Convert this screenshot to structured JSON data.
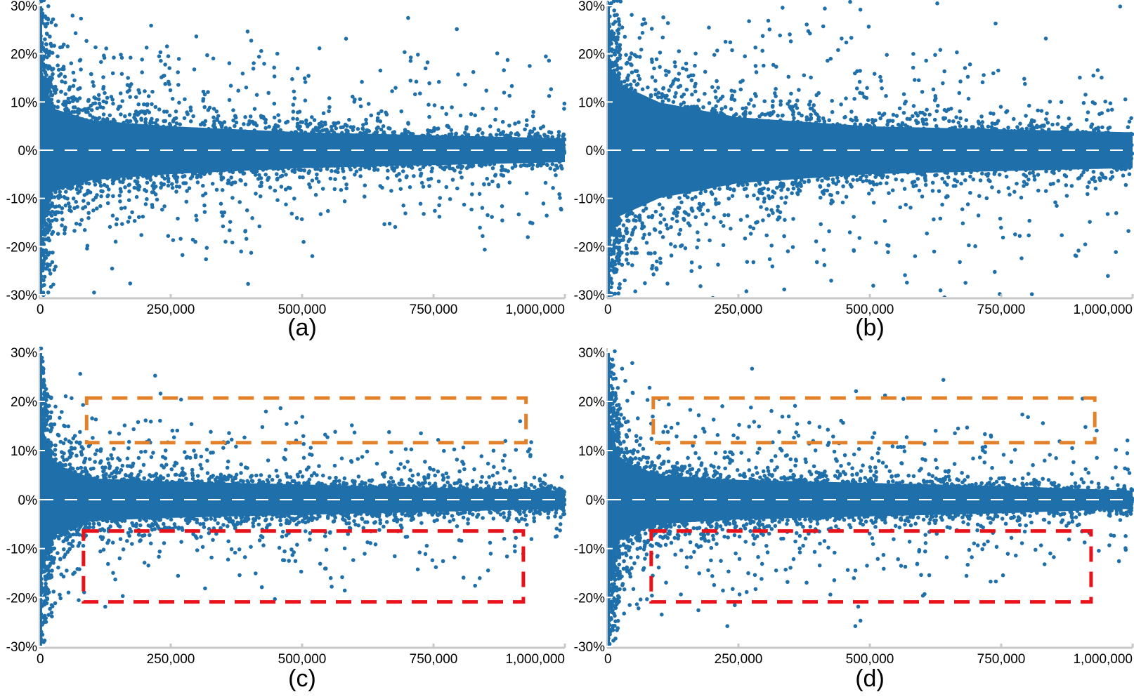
{
  "chart_data": [
    {
      "type": "scatter",
      "panel_label": "(a)",
      "xlabel": "",
      "ylabel": "",
      "xlim": [
        0,
        1000000
      ],
      "ylim": [
        -30,
        30
      ],
      "x_ticks": [
        "0",
        "250,000",
        "500,000",
        "750,000",
        "1,000,000"
      ],
      "x_tick_values": [
        0,
        250000,
        500000,
        750000,
        1000000
      ],
      "y_ticks": [
        "30%",
        "20%",
        "10%",
        "0%",
        "-10%",
        "-20%",
        "-30%"
      ],
      "y_tick_values": [
        30,
        20,
        10,
        0,
        -10,
        -20,
        -30
      ],
      "reference_line": {
        "y": 0,
        "style": "dashed",
        "color": "#ffffff"
      },
      "marker_color": "#1F6FAA",
      "point_count_estimate": 20000,
      "band_halfwidth_pct": [
        {
          "x": 0,
          "value": 30
        },
        {
          "x": 25000,
          "value": 14
        },
        {
          "x": 100000,
          "value": 10
        },
        {
          "x": 250000,
          "value": 8
        },
        {
          "x": 500000,
          "value": 6
        },
        {
          "x": 750000,
          "value": 5
        },
        {
          "x": 1000000,
          "value": 4
        }
      ],
      "outlier_spread_pct": 20,
      "seed": 11,
      "boxes": []
    },
    {
      "type": "scatter",
      "panel_label": "(b)",
      "xlabel": "",
      "ylabel": "",
      "xlim": [
        0,
        1000000
      ],
      "ylim": [
        -30,
        30
      ],
      "x_ticks": [
        "0",
        "250,000",
        "500,000",
        "750,000",
        "1,000,000"
      ],
      "x_tick_values": [
        0,
        250000,
        500000,
        750000,
        1000000
      ],
      "y_ticks": [
        "30%",
        "20%",
        "10%",
        "0%",
        "-10%",
        "-20%",
        "-30%"
      ],
      "y_tick_values": [
        30,
        20,
        10,
        0,
        -10,
        -20,
        -30
      ],
      "reference_line": {
        "y": 0,
        "style": "dashed",
        "color": "#ffffff"
      },
      "marker_color": "#1F6FAA",
      "point_count_estimate": 20000,
      "band_halfwidth_pct": [
        {
          "x": 0,
          "value": 30
        },
        {
          "x": 25000,
          "value": 22
        },
        {
          "x": 100000,
          "value": 16
        },
        {
          "x": 250000,
          "value": 11
        },
        {
          "x": 500000,
          "value": 8
        },
        {
          "x": 750000,
          "value": 7
        },
        {
          "x": 1000000,
          "value": 6
        }
      ],
      "outlier_spread_pct": 26,
      "seed": 23,
      "boxes": []
    },
    {
      "type": "scatter",
      "panel_label": "(c)",
      "xlabel": "",
      "ylabel": "",
      "xlim": [
        0,
        1000000
      ],
      "ylim": [
        -30,
        30
      ],
      "x_ticks": [
        "0",
        "250,000",
        "500,000",
        "750,000",
        "1,000,000"
      ],
      "x_tick_values": [
        0,
        250000,
        500000,
        750000,
        1000000
      ],
      "y_ticks": [
        "30%",
        "20%",
        "10%",
        "0%",
        "-10%",
        "-20%",
        "-30%"
      ],
      "y_tick_values": [
        30,
        20,
        10,
        0,
        -10,
        -20,
        -30
      ],
      "reference_line": {
        "y": 0,
        "style": "dashed",
        "color": "#ffffff"
      },
      "marker_color": "#1F6FAA",
      "point_count_estimate": 20000,
      "band_halfwidth_pct": [
        {
          "x": 0,
          "value": 28
        },
        {
          "x": 25000,
          "value": 12
        },
        {
          "x": 100000,
          "value": 7
        },
        {
          "x": 250000,
          "value": 6
        },
        {
          "x": 500000,
          "value": 5
        },
        {
          "x": 750000,
          "value": 4
        },
        {
          "x": 1000000,
          "value": 3
        }
      ],
      "outlier_spread_pct": 14,
      "seed": 37,
      "boxes": [
        {
          "name": "orange-highlight-box",
          "color": "#E3812B",
          "x_range": [
            90000,
            926000
          ],
          "y_range": [
            11.6,
            20.7
          ]
        },
        {
          "name": "red-highlight-box",
          "color": "#E8131A",
          "x_range": [
            84000,
            921000
          ],
          "y_range": [
            -20.9,
            -6.4
          ]
        }
      ]
    },
    {
      "type": "scatter",
      "panel_label": "(d)",
      "xlabel": "",
      "ylabel": "",
      "xlim": [
        0,
        1000000
      ],
      "ylim": [
        -30,
        30
      ],
      "x_ticks": [
        "0",
        "250,000",
        "500,000",
        "750,000",
        "1,000,000"
      ],
      "x_tick_values": [
        0,
        250000,
        500000,
        750000,
        1000000
      ],
      "y_ticks": [
        "30%",
        "20%",
        "10%",
        "0%",
        "-10%",
        "-20%",
        "-30%"
      ],
      "y_tick_values": [
        30,
        20,
        10,
        0,
        -10,
        -20,
        -30
      ],
      "reference_line": {
        "y": 0,
        "style": "dashed",
        "color": "#ffffff"
      },
      "marker_color": "#1F6FAA",
      "point_count_estimate": 20000,
      "band_halfwidth_pct": [
        {
          "x": 0,
          "value": 28
        },
        {
          "x": 25000,
          "value": 13
        },
        {
          "x": 100000,
          "value": 8
        },
        {
          "x": 250000,
          "value": 6.5
        },
        {
          "x": 500000,
          "value": 5.5
        },
        {
          "x": 750000,
          "value": 4.5
        },
        {
          "x": 1000000,
          "value": 3
        }
      ],
      "outlier_spread_pct": 17,
      "seed": 51,
      "boxes": [
        {
          "name": "orange-highlight-box",
          "color": "#E3812B",
          "x_range": [
            88000,
            928000
          ],
          "y_range": [
            11.6,
            20.7
          ]
        },
        {
          "name": "red-highlight-box",
          "color": "#E8131A",
          "x_range": [
            84000,
            921000
          ],
          "y_range": [
            -20.9,
            -6.4
          ]
        }
      ]
    }
  ]
}
